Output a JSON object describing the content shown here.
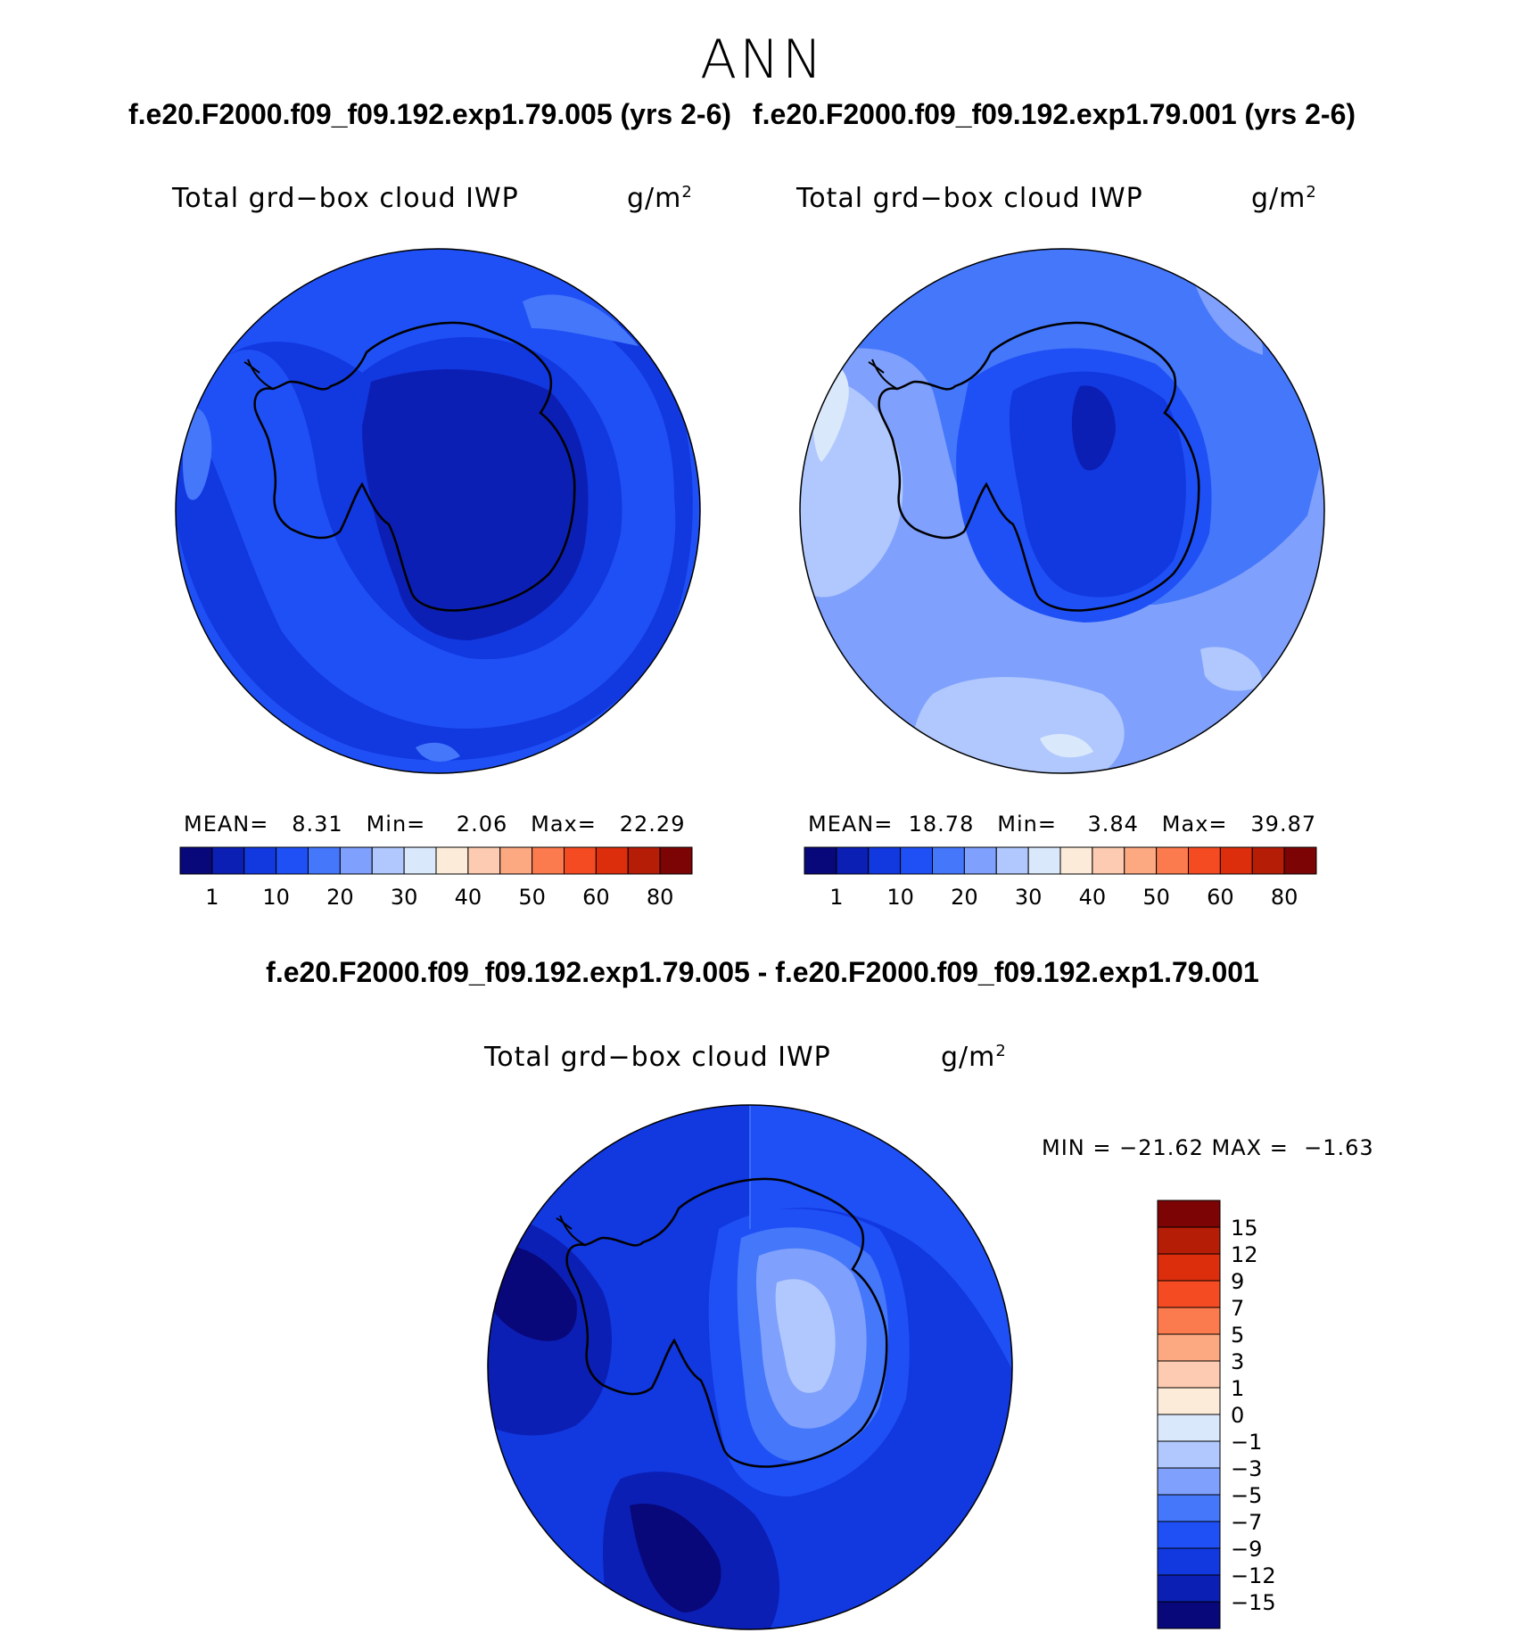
{
  "figure": {
    "season": "ANN",
    "header_titles": [
      "f.e20.F2000.f09_f09.192.exp1.79.005 (yrs 2-6)",
      "f.e20.F2000.f09_f09.192.exp1.79.001 (yrs 2-6)"
    ],
    "diff_title": "f.e20.F2000.f09_f09.192.exp1.79.005 - f.e20.F2000.f09_f09.192.exp1.79.001"
  },
  "panels": [
    {
      "variable": "Total grd−box cloud IWP",
      "units": "g/m",
      "units_exp": "2",
      "mean_label": "MEAN=",
      "mean": "8.31",
      "min_label": "Min=",
      "min": "2.06",
      "max_label": "Max=",
      "max": "22.29"
    },
    {
      "variable": "Total grd−box cloud IWP",
      "units": "g/m",
      "units_exp": "2",
      "mean_label": "MEAN=",
      "mean": "18.78",
      "min_label": "Min=",
      "min": "3.84",
      "max_label": "Max=",
      "max": "39.87"
    }
  ],
  "diff_panel": {
    "variable": "Total grd−box cloud IWP",
    "units": "g/m",
    "units_exp": "2",
    "minmax_text": "MIN = −21.62 MAX =  −1.63"
  },
  "colorbar_abs": {
    "colors": [
      "#08087a",
      "#0c1fb4",
      "#1238e0",
      "#1f50f5",
      "#4577fb",
      "#7fa0fc",
      "#b0c8fd",
      "#dae8fc",
      "#fcebd9",
      "#fdcbb1",
      "#fca982",
      "#fb7b4e",
      "#f44b22",
      "#dc2e0c",
      "#b51d07",
      "#7d0404"
    ],
    "tick_labels": [
      "1",
      "10",
      "20",
      "30",
      "40",
      "50",
      "60",
      "80"
    ]
  },
  "colorbar_diff": {
    "colors_top_to_bottom": [
      "#7d0404",
      "#b51d07",
      "#dc2e0c",
      "#f44b22",
      "#fb7b4e",
      "#fca982",
      "#fdcbb1",
      "#fcebd9",
      "#dae8fc",
      "#b0c8fd",
      "#7fa0fc",
      "#4577fb",
      "#1f50f5",
      "#1238e0",
      "#0c1fb4",
      "#08087a"
    ],
    "tick_labels": [
      "15",
      "12",
      "9",
      "7",
      "5",
      "3",
      "1",
      "0",
      "−1",
      "−3",
      "−5",
      "−7",
      "−9",
      "−12",
      "−15"
    ]
  }
}
